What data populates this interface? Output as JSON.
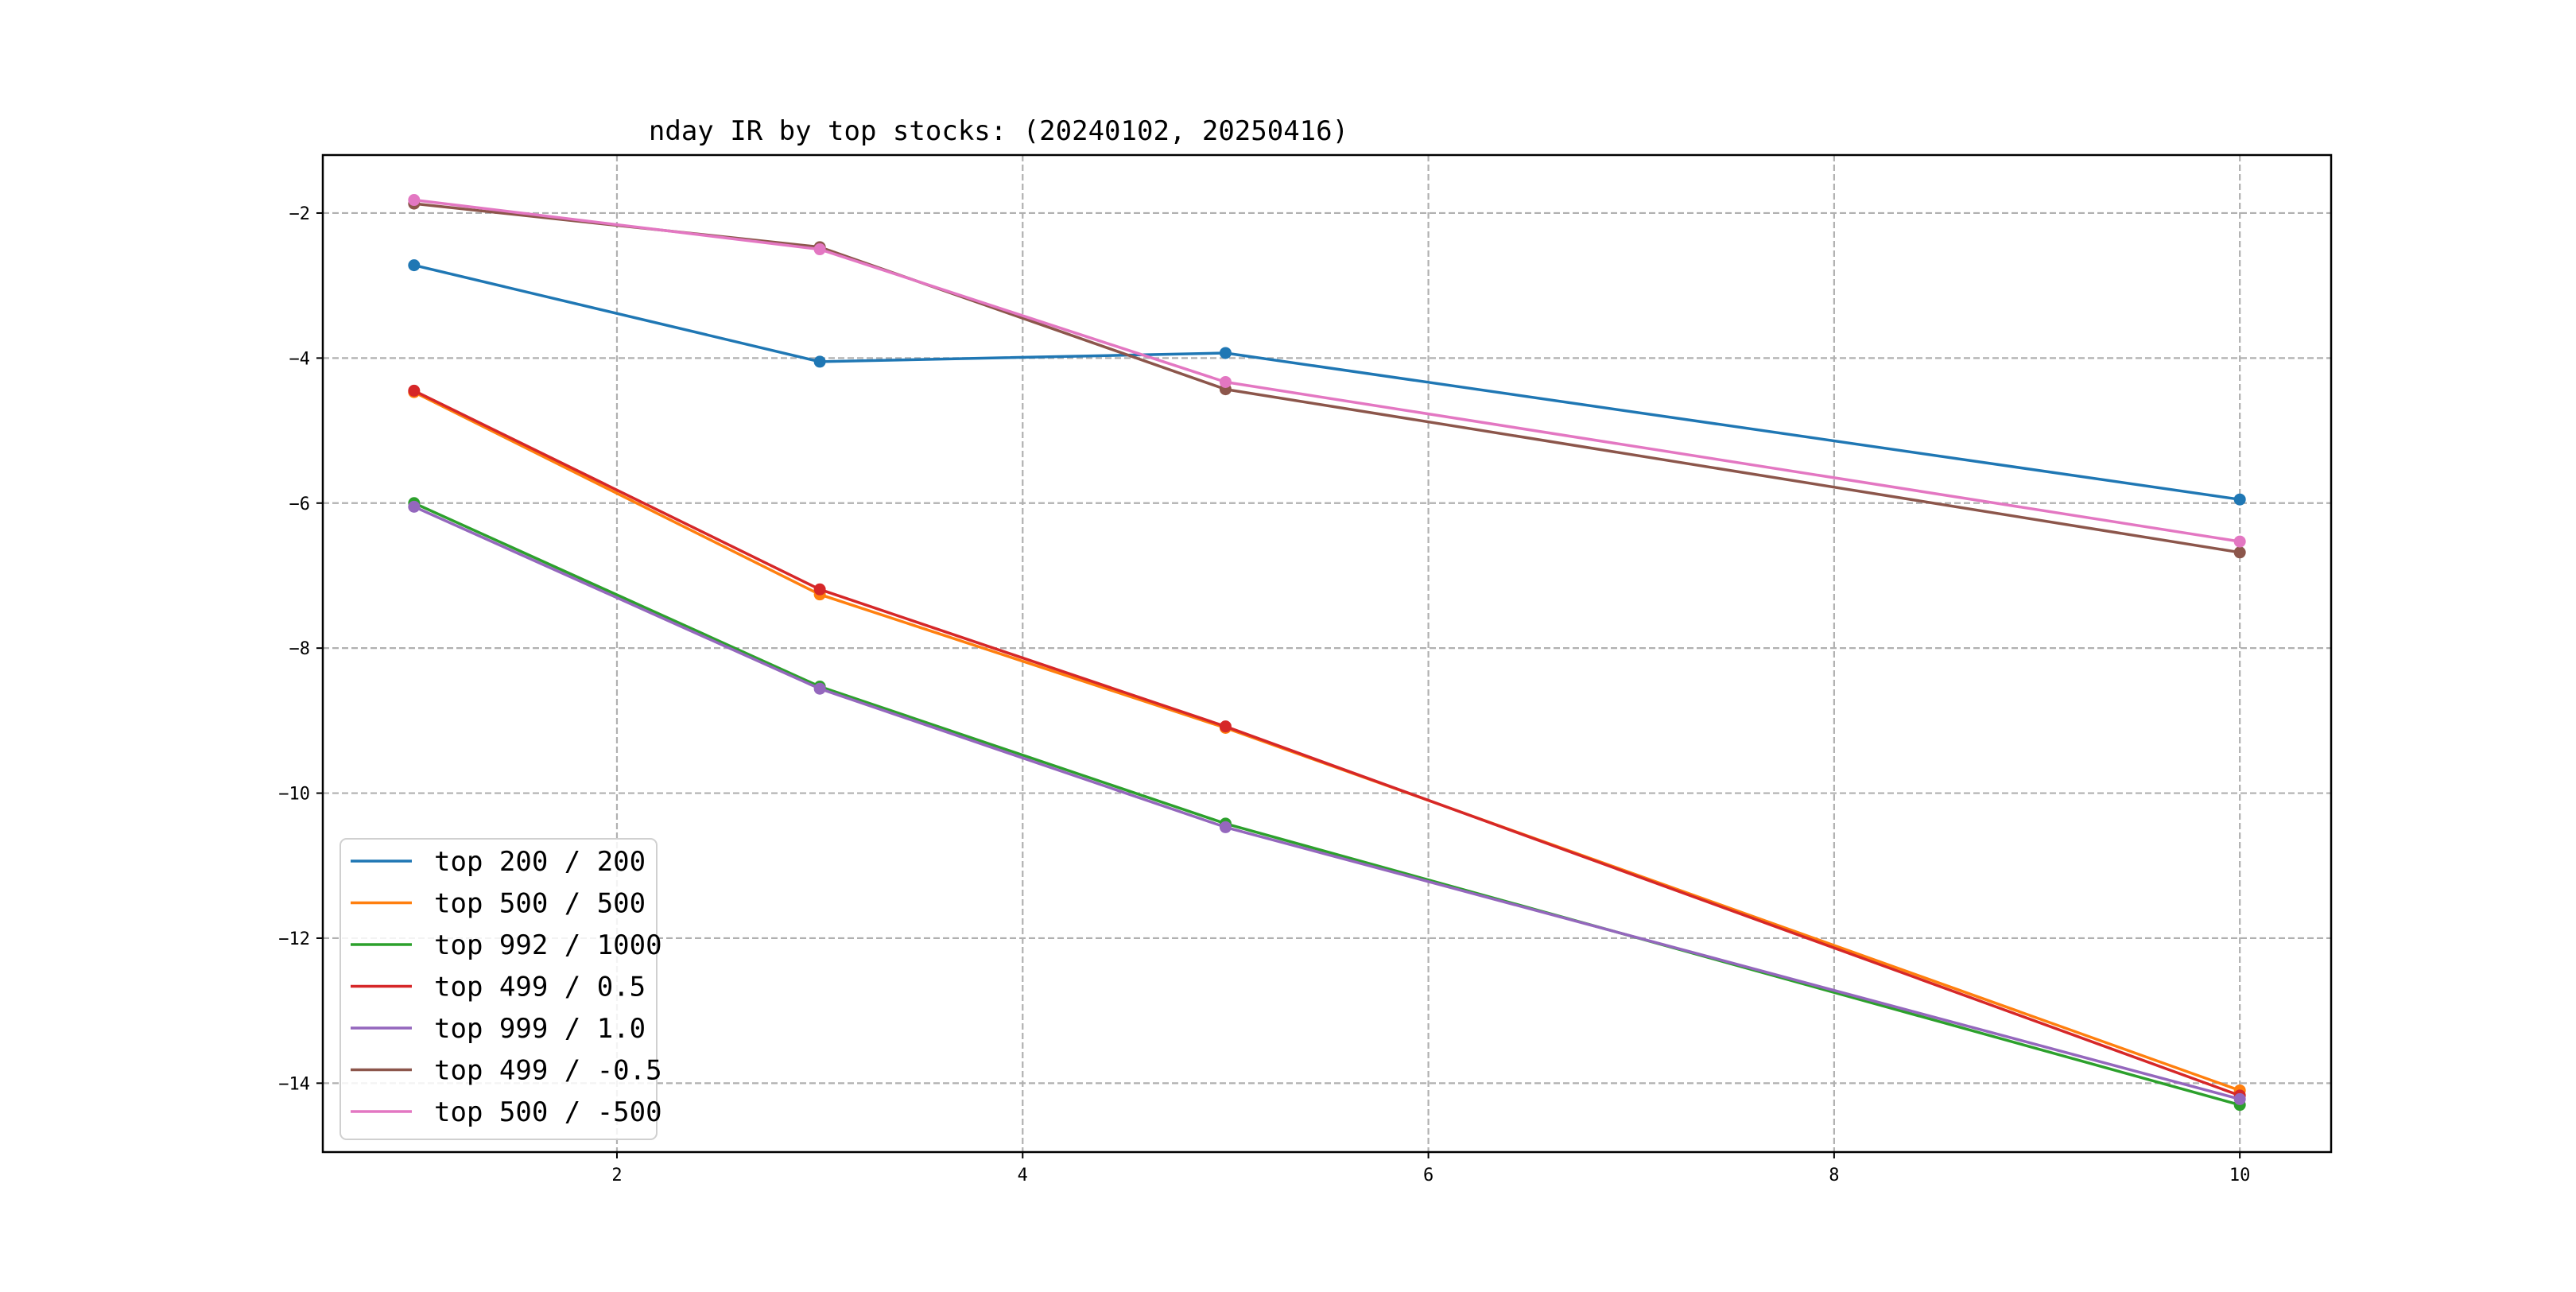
{
  "chart_data": {
    "type": "line",
    "title": "nday IR by top stocks: (20240102, 20250416)",
    "xlabel": "",
    "ylabel": "",
    "x": [
      1,
      3,
      5,
      10
    ],
    "xlim": [
      0.55,
      10.45
    ],
    "ylim": [
      -14.95,
      -1.2
    ],
    "xticks": [
      2,
      4,
      6,
      8,
      10
    ],
    "yticks": [
      -2,
      -4,
      -6,
      -8,
      -10,
      -12,
      -14
    ],
    "grid": true,
    "legend_position": "lower-left",
    "series": [
      {
        "name": "top 200 / 200",
        "color": "#1f77b4",
        "values": [
          -2.72,
          -4.05,
          -3.93,
          -5.95
        ]
      },
      {
        "name": "top 500 / 500",
        "color": "#ff7f0e",
        "values": [
          -4.47,
          -7.26,
          -9.1,
          -14.1
        ]
      },
      {
        "name": "top 992 / 1000",
        "color": "#2ca02c",
        "values": [
          -6.0,
          -8.53,
          -10.42,
          -14.3
        ]
      },
      {
        "name": "top 499 / 0.5",
        "color": "#d62728",
        "values": [
          -4.45,
          -7.19,
          -9.08,
          -14.17
        ]
      },
      {
        "name": "top 999 / 1.0",
        "color": "#9467bd",
        "values": [
          -6.05,
          -8.56,
          -10.47,
          -14.22
        ]
      },
      {
        "name": "top 499 / -0.5",
        "color": "#8c564b",
        "values": [
          -1.87,
          -2.47,
          -4.43,
          -6.68
        ]
      },
      {
        "name": "top 500 / -500",
        "color": "#e377c2",
        "values": [
          -1.82,
          -2.5,
          -4.33,
          -6.53
        ]
      }
    ]
  }
}
